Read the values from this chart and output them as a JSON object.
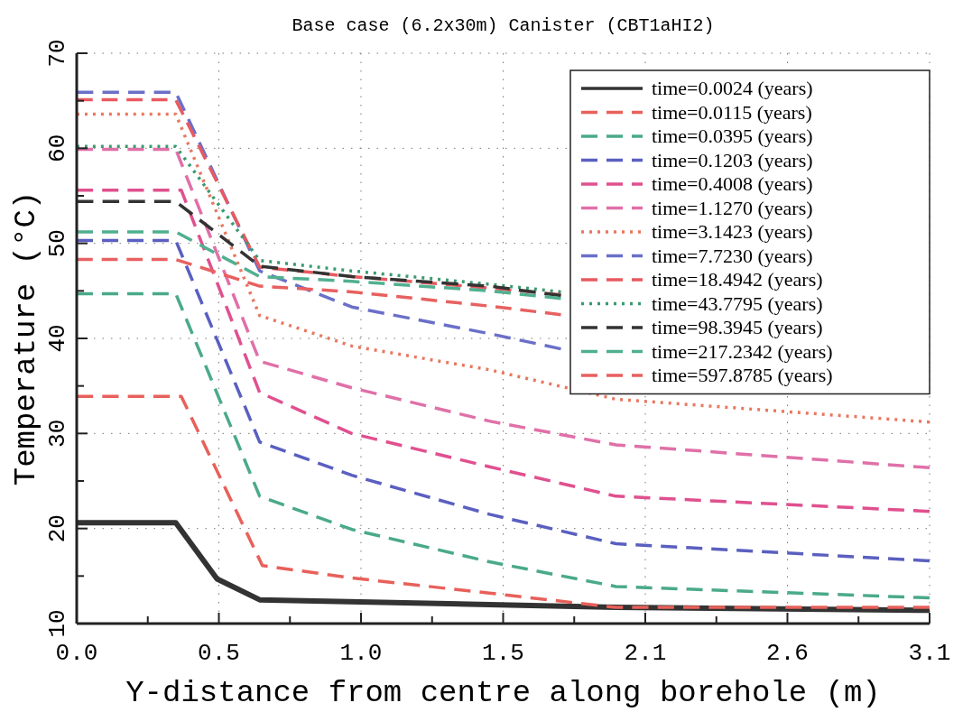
{
  "chart_data": {
    "type": "line",
    "title": "Base case (6.2x30m) Canister (CBT1aHI2)",
    "xlabel": "Y-distance from centre along borehole (m)",
    "ylabel": "Temperature (°C)",
    "xlim": [
      0,
      3.1
    ],
    "xticks": [
      {
        "value": 0,
        "label": "0.0"
      },
      {
        "value": 0.2583,
        "label": null
      },
      {
        "value": 0.5167,
        "label": "0.5"
      },
      {
        "value": 0.775,
        "label": null
      },
      {
        "value": 1.0333,
        "label": "1.0"
      },
      {
        "value": 1.2917,
        "label": null
      },
      {
        "value": 1.55,
        "label": "1.5"
      },
      {
        "value": 1.8083,
        "label": null
      },
      {
        "value": 2.0667,
        "label": "2.1"
      },
      {
        "value": 2.325,
        "label": null
      },
      {
        "value": 2.5833,
        "label": "2.6"
      },
      {
        "value": 2.8417,
        "label": null
      },
      {
        "value": 3.1,
        "label": "3.1"
      }
    ],
    "ylim": [
      10,
      70
    ],
    "yticks": [
      10,
      {
        "value": 15,
        "label": null
      },
      20,
      {
        "value": 25,
        "label": null
      },
      30,
      {
        "value": 35,
        "label": null
      },
      40,
      {
        "value": 45,
        "label": null
      },
      50,
      {
        "value": 55,
        "label": null
      },
      60,
      {
        "value": 65,
        "label": null
      },
      70
    ],
    "grid": true,
    "legend": "top right",
    "series": [
      {
        "name": "time=0.0024 (years)",
        "color": "#333333",
        "line_style": "solid",
        "x": [
          0,
          0.36,
          0.51,
          0.665,
          1.5,
          1.96,
          3.1
        ],
        "values": [
          20.6,
          20.6,
          14.7,
          12.5,
          12.0,
          11.7,
          11.4
        ]
      },
      {
        "name": "time=0.0115 (years)",
        "color": "#e8605a",
        "line_style": "dashed",
        "x": [
          0,
          0.38,
          0.675,
          1.0,
          1.5,
          1.96,
          3.1
        ],
        "values": [
          33.9,
          33.9,
          16.1,
          14.8,
          13.2,
          11.7,
          11.7
        ]
      },
      {
        "name": "time=0.0395 (years)",
        "color": "#4aaa88",
        "line_style": "dashed",
        "x": [
          0,
          0.36,
          0.665,
          1.0,
          1.5,
          1.96,
          3.1
        ],
        "values": [
          44.7,
          44.7,
          23.4,
          19.9,
          16.5,
          13.9,
          12.7
        ]
      },
      {
        "name": "time=0.1203 (years)",
        "color": "#5a5fc0",
        "line_style": "dashed",
        "x": [
          0,
          0.36,
          0.665,
          1.0,
          1.5,
          1.96,
          3.1
        ],
        "values": [
          50.3,
          50.3,
          29.1,
          25.6,
          21.5,
          18.4,
          16.6
        ]
      },
      {
        "name": "time=0.4008 (years)",
        "color": "#e0508f",
        "line_style": "dashed",
        "x": [
          0,
          0.38,
          0.665,
          1.0,
          1.5,
          1.96,
          3.1
        ],
        "values": [
          55.6,
          55.6,
          34.3,
          30.0,
          26.5,
          23.4,
          21.8
        ]
      },
      {
        "name": "time=1.1270 (years)",
        "color": "#e070a8",
        "line_style": "dashed",
        "x": [
          0,
          0.36,
          0.665,
          1.0,
          1.5,
          1.96,
          3.1
        ],
        "values": [
          59.9,
          59.9,
          37.6,
          34.8,
          31.3,
          28.8,
          26.4
        ]
      },
      {
        "name": "time=3.1423 (years)",
        "color": "#e87860",
        "line_style": "dotted",
        "x": [
          0,
          0.36,
          0.665,
          1.0,
          1.5,
          1.96,
          3.1
        ],
        "values": [
          63.6,
          63.6,
          42.4,
          39.2,
          36.7,
          33.6,
          31.2
        ]
      },
      {
        "name": "time=7.7230 (years)",
        "color": "#6a70c8",
        "line_style": "dashed",
        "x": [
          0,
          0.36,
          0.665,
          1.0,
          1.5,
          1.76
        ],
        "values": [
          65.9,
          65.9,
          47.1,
          43.3,
          40.5,
          38.9
        ]
      },
      {
        "name": "time=18.4942 (years)",
        "color": "#e85a60",
        "line_style": "dashed",
        "x": [
          0,
          0.36,
          0.665,
          1.0,
          1.5,
          1.76
        ],
        "values": [
          65.1,
          65.1,
          47.5,
          46.5,
          45.3,
          44.6
        ]
      },
      {
        "name": "time=43.7795 (years)",
        "color": "#3a9a70",
        "line_style": "dotted",
        "x": [
          0,
          0.36,
          0.665,
          1.0,
          1.5,
          1.76
        ],
        "values": [
          60.2,
          60.2,
          48.2,
          47.1,
          45.7,
          44.9
        ]
      },
      {
        "name": "time=98.3945 (years)",
        "color": "#333333",
        "line_style": "dashed",
        "x": [
          0,
          0.36,
          0.665,
          1.0,
          1.5,
          1.76
        ],
        "values": [
          54.4,
          54.4,
          47.6,
          46.5,
          45.5,
          44.5
        ]
      },
      {
        "name": "time=217.2342 (years)",
        "color": "#50b090",
        "line_style": "dashed",
        "x": [
          0,
          0.36,
          0.665,
          1.0,
          1.5,
          1.76
        ],
        "values": [
          51.2,
          51.2,
          46.5,
          46.0,
          45.0,
          44.2
        ]
      },
      {
        "name": "time=597.8785 (years)",
        "color": "#e86060",
        "line_style": "dashed",
        "x": [
          0,
          0.36,
          0.665,
          1.0,
          1.5,
          1.76
        ],
        "values": [
          48.3,
          48.3,
          45.5,
          44.9,
          43.4,
          42.5
        ]
      }
    ]
  }
}
